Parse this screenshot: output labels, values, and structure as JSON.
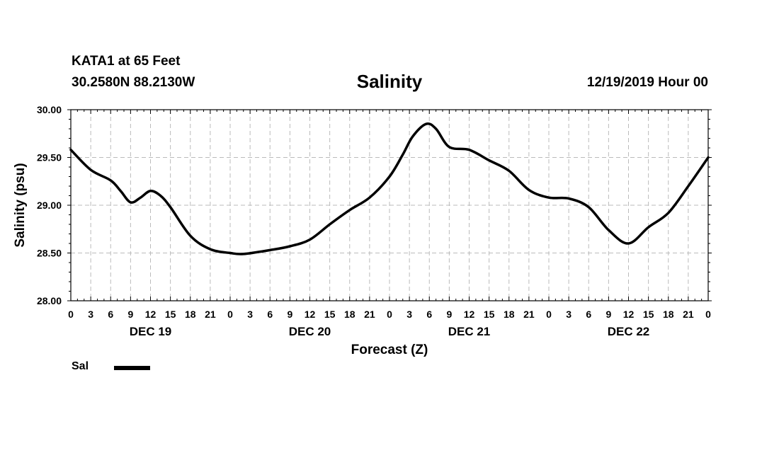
{
  "header": {
    "station": "KATA1 at 65 Feet",
    "coords": "30.2580N 88.2130W",
    "title": "Salinity",
    "datetime": "12/19/2019 Hour 00"
  },
  "legend": {
    "label": "Sal"
  },
  "chart_data": {
    "type": "line",
    "title": "Salinity",
    "xlabel": "Forecast (Z)",
    "ylabel": "Salinity (psu)",
    "ylim": [
      28.0,
      30.0
    ],
    "yticks": [
      "28.00",
      "28.50",
      "29.00",
      "29.50",
      "30.00"
    ],
    "xlim_hours": [
      0,
      96
    ],
    "xtick_labels": [
      "0",
      "3",
      "6",
      "9",
      "12",
      "15",
      "18",
      "21",
      "0",
      "3",
      "6",
      "9",
      "12",
      "15",
      "18",
      "21",
      "0",
      "3",
      "6",
      "9",
      "12",
      "15",
      "18",
      "21",
      "0",
      "3",
      "6",
      "9",
      "12",
      "15",
      "18",
      "21",
      "0"
    ],
    "day_labels": [
      {
        "label": "DEC 19",
        "hour": 12
      },
      {
        "label": "DEC 20",
        "hour": 36
      },
      {
        "label": "DEC 21",
        "hour": 60
      },
      {
        "label": "DEC 22",
        "hour": 84
      }
    ],
    "grid": true,
    "series": [
      {
        "name": "Sal",
        "color": "#000000",
        "x": [
          0,
          3,
          6,
          7.5,
          9,
          10.5,
          12,
          13.5,
          15,
          18,
          21,
          24,
          26,
          30,
          33,
          36,
          39,
          42,
          45,
          48,
          50,
          51.5,
          53.5,
          55,
          57,
          60,
          63,
          66,
          69,
          72,
          75,
          78,
          81,
          84,
          87,
          90,
          93,
          96
        ],
        "values": [
          29.58,
          29.37,
          29.26,
          29.15,
          29.03,
          29.08,
          29.15,
          29.1,
          28.98,
          28.68,
          28.54,
          28.5,
          28.49,
          28.53,
          28.57,
          28.64,
          28.8,
          28.95,
          29.08,
          29.3,
          29.53,
          29.72,
          29.85,
          29.8,
          29.61,
          29.58,
          29.47,
          29.36,
          29.16,
          29.08,
          29.07,
          28.98,
          28.74,
          28.6,
          28.77,
          28.92,
          29.2,
          29.5
        ]
      }
    ]
  }
}
